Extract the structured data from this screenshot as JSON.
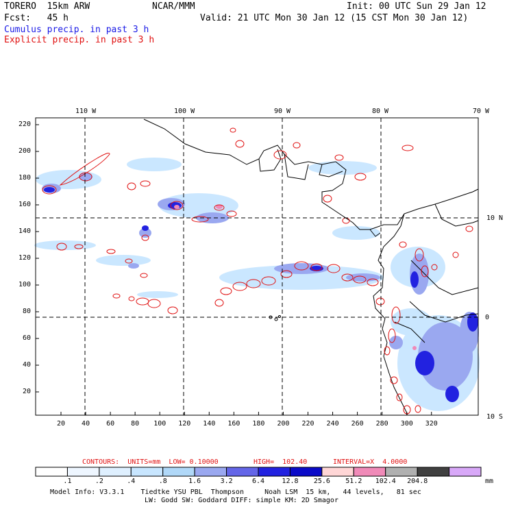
{
  "header": {
    "model": "TORERO  15km ARW",
    "org": "NCAR/MMM",
    "init": "Init: 00 UTC Sun 29 Jan 12",
    "fcst": "Fcst:   45 h",
    "valid": "Valid: 21 UTC Mon 30 Jan 12 (15 CST Mon 30 Jan 12)",
    "cumulus": "Cumulus precip. in past 3 h",
    "explicit": "Explicit precip. in past 3 h"
  },
  "map": {
    "lon_labels": [
      "110 W",
      "100 W",
      "90 W",
      "80 W",
      "70 W"
    ],
    "lat_labels": [
      "10 N",
      "0",
      "10 S"
    ],
    "y_ticks": [
      "220",
      "200",
      "180",
      "160",
      "140",
      "120",
      "100",
      "80",
      "60",
      "40",
      "20"
    ],
    "x_ticks": [
      "20",
      "40",
      "60",
      "80",
      "100",
      "120",
      "140",
      "160",
      "180",
      "200",
      "220",
      "240",
      "260",
      "280",
      "300",
      "320"
    ]
  },
  "contours": {
    "units": "CONTOURS:  UNITS=mm  LOW= 0.10000",
    "high": "HIGH=  102.40",
    "interval": "INTERVAL=X  4.0000"
  },
  "colorbar": {
    "labels": [
      ".1",
      ".2",
      ".4",
      ".8",
      "1.6",
      "3.2",
      "6.4",
      "12.8",
      "25.6",
      "51.2",
      "102.4",
      "204.8"
    ],
    "unit": "mm",
    "colors": [
      "#ffffff",
      "#eef6ff",
      "#dff0ff",
      "#c8e6ff",
      "#b0d8f8",
      "#9aa8f0",
      "#6466e8",
      "#2222e0",
      "#0a0ac8",
      "#ffd6d6",
      "#f08ab8",
      "#b0b0b0",
      "#404040",
      "#d8a8f8"
    ]
  },
  "model_info": {
    "line1": "Model Info: V3.3.1    Tiedtke YSU PBL  Thompson     Noah LSM  15 km,   44 levels,   81 sec",
    "line2": "LW: Godd SW: Goddard DIFF: simple KM: 2D Smagor"
  }
}
